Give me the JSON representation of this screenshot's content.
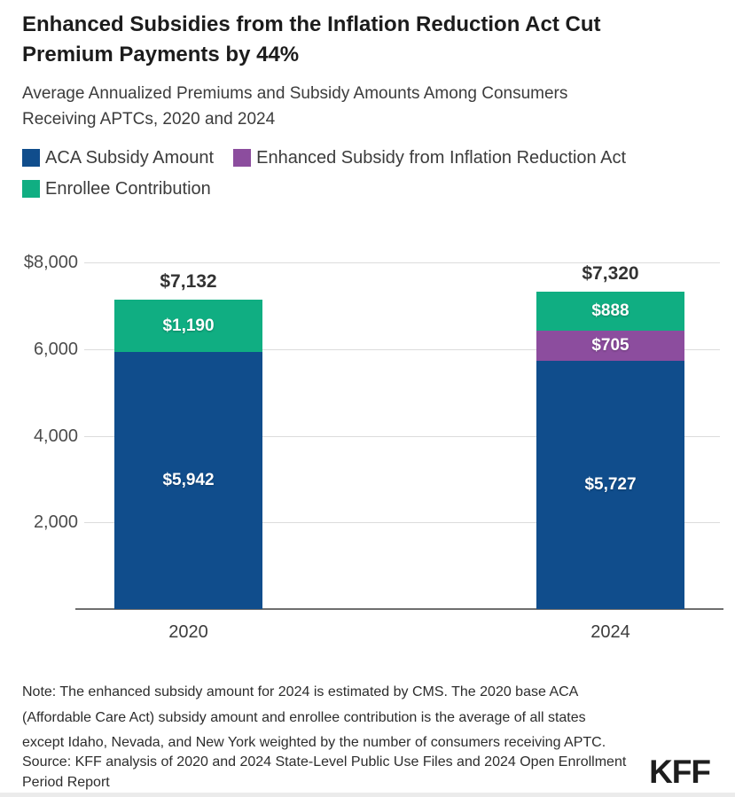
{
  "title": {
    "lines": [
      "Enhanced Subsidies from the Inflation Reduction Act Cut",
      "Premium Payments by 44%"
    ]
  },
  "subtitle": {
    "lines": [
      "Average Annualized Premiums and Subsidy Amounts Among Consumers",
      "Receiving APTCs, 2020 and 2024"
    ]
  },
  "legend": {
    "items": [
      {
        "label": "ACA Subsidy Amount",
        "color": "#104d8c"
      },
      {
        "label": "Enhanced Subsidy from Inflation Reduction Act",
        "color": "#8c4d9e"
      },
      {
        "label": "Enrollee Contribution",
        "color": "#10ae82"
      }
    ]
  },
  "chart_data": {
    "type": "bar",
    "stacked": true,
    "title": "Average Annualized Premiums and Subsidy Amounts Among Consumers Receiving APTCs, 2020 and 2024",
    "categories": [
      "2020",
      "2024"
    ],
    "series": [
      {
        "name": "ACA Subsidy Amount",
        "color": "#104d8c",
        "values": [
          5942,
          5727
        ]
      },
      {
        "name": "Enhanced Subsidy from Inflation Reduction Act",
        "color": "#8c4d9e",
        "values": [
          0,
          705
        ]
      },
      {
        "name": "Enrollee Contribution",
        "color": "#10ae82",
        "values": [
          1190,
          888
        ]
      }
    ],
    "totals": [
      "$7,132",
      "$7,320"
    ],
    "segment_labels": [
      [
        "$5,942",
        "",
        "$1,190"
      ],
      [
        "$5,727",
        "$705",
        "$888"
      ]
    ],
    "yticks": [
      {
        "label": "$8,000",
        "value": 8000
      },
      {
        "label": "6,000",
        "value": 6000
      },
      {
        "label": "4,000",
        "value": 4000
      },
      {
        "label": "2,000",
        "value": 2000
      }
    ],
    "ylim": [
      0,
      8000
    ],
    "grid": true,
    "legend_position": "top"
  },
  "note": {
    "lines": [
      "Note: The enhanced subsidy amount for 2024 is estimated by CMS. The 2020 base ACA",
      "(Affordable Care Act) subsidy amount and enrollee contribution is the average of all states",
      "except Idaho, Nevada, and New York weighted by the number of consumers receiving APTC."
    ]
  },
  "source": {
    "lines": [
      "Source: KFF analysis of 2020 and 2024 State-Level Public Use Files and 2024 Open Enrollment",
      "Period Report"
    ]
  },
  "branding": {
    "logo": "KFF"
  },
  "colors": {
    "background": "#ffffff",
    "gridline": "#dcdcdc",
    "axis_line": "#6e6e6e",
    "title_text": "#1c1c1c",
    "body_text": "#3c3c3c",
    "bar_blue": "#104d8c",
    "bar_purple": "#8c4d9e",
    "bar_green": "#10ae82"
  }
}
